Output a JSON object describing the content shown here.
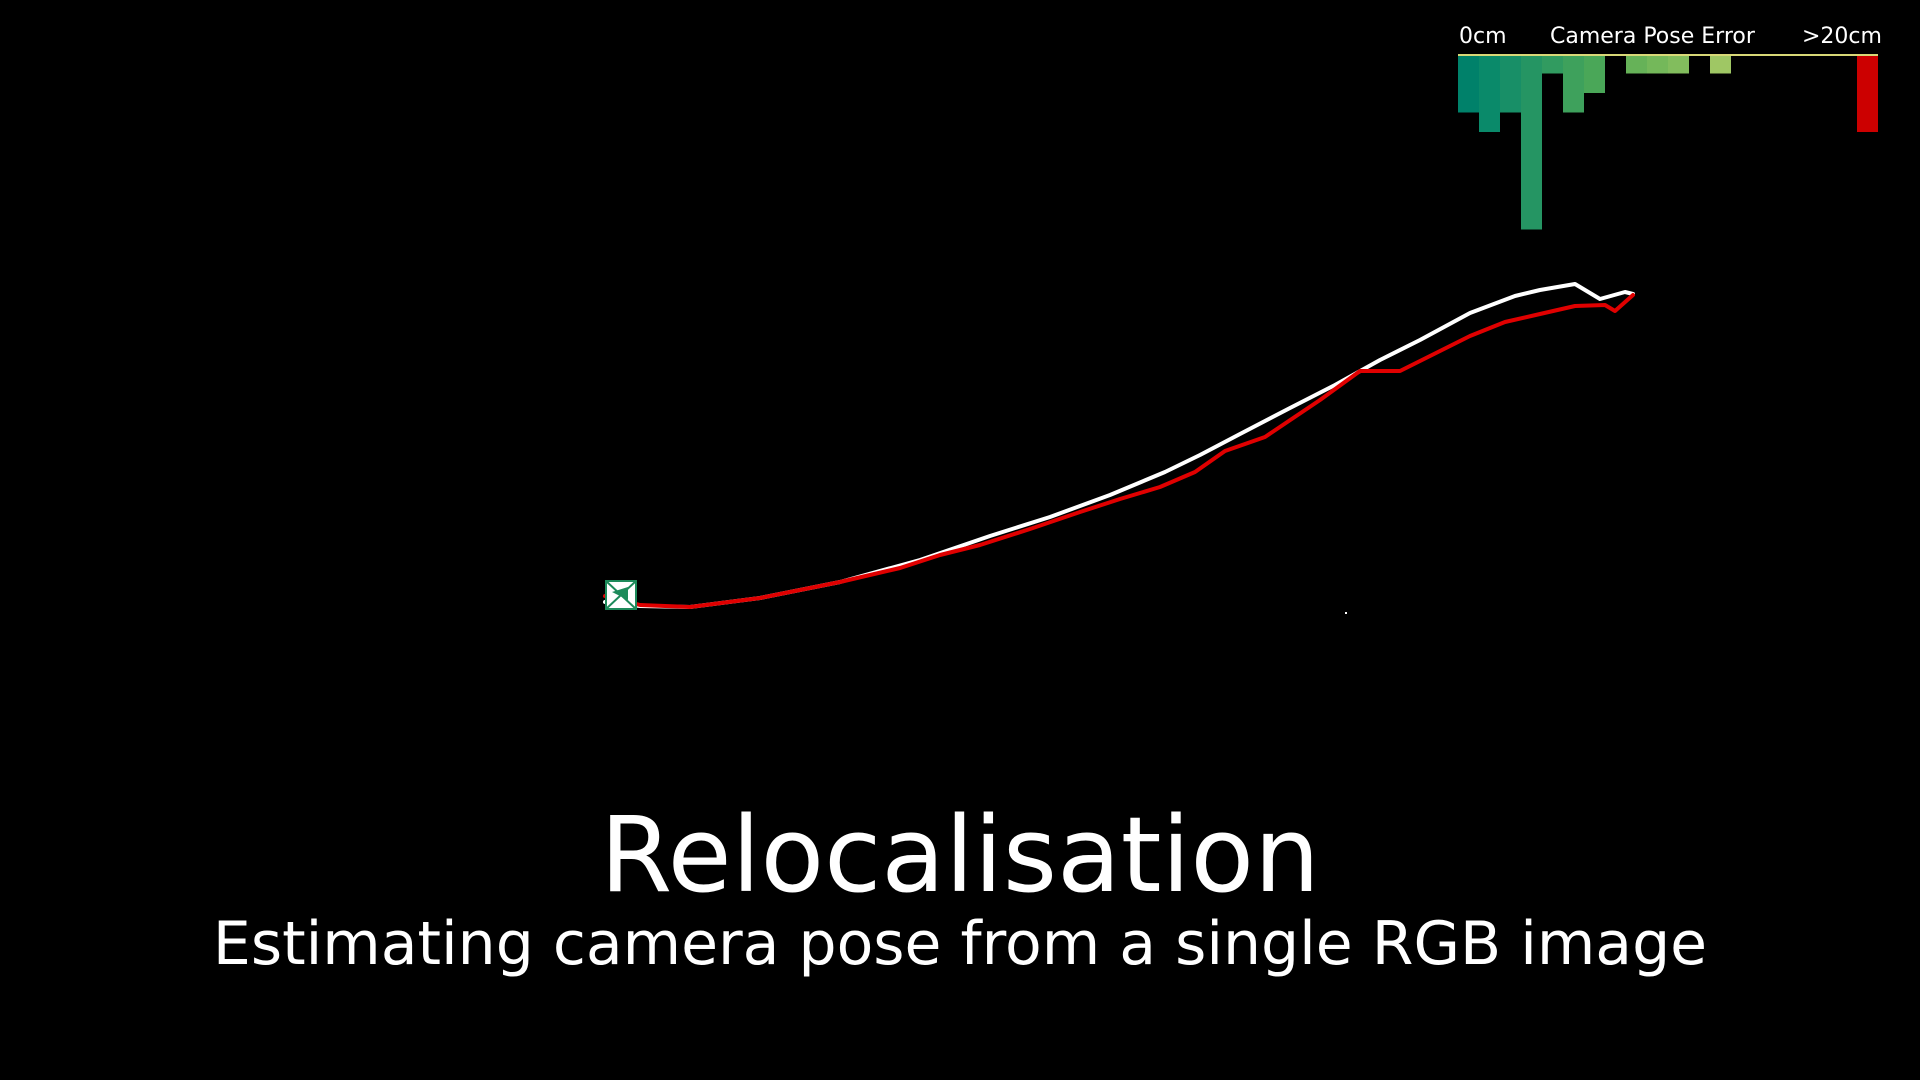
{
  "title": "Relocalisation",
  "subtitle": "Estimating camera pose from a single RGB image",
  "error_histogram": {
    "title": "Camera Pose Error",
    "min_label": "0cm",
    "max_label": ">20cm",
    "bins": [
      {
        "count": 3,
        "color": "#00816a"
      },
      {
        "count": 4,
        "color": "#0a8a6a"
      },
      {
        "count": 3,
        "color": "#188f67"
      },
      {
        "count": 9,
        "color": "#259563"
      },
      {
        "count": 1,
        "color": "#319b60"
      },
      {
        "count": 3,
        "color": "#3ea15c"
      },
      {
        "count": 2,
        "color": "#4aa758"
      },
      {
        "count": 0,
        "color": "#58ad57"
      },
      {
        "count": 1,
        "color": "#66b258"
      },
      {
        "count": 1,
        "color": "#74b85a"
      },
      {
        "count": 1,
        "color": "#82bd5d"
      },
      {
        "count": 0,
        "color": "#90c260"
      },
      {
        "count": 1,
        "color": "#9fc764"
      },
      {
        "count": 0,
        "color": "#adcb68"
      },
      {
        "count": 0,
        "color": "#bbcf6c"
      },
      {
        "count": 0,
        "color": "#c8d370"
      },
      {
        "count": 0,
        "color": "#d4d674"
      },
      {
        "count": 0,
        "color": "#dcd878"
      },
      {
        "count": 0,
        "color": "#e0d87a"
      },
      {
        "count": 4,
        "color": "#cc0000"
      }
    ]
  },
  "trajectory": {
    "ground_truth_color": "#ffffff",
    "estimate_color": "#e00000"
  }
}
